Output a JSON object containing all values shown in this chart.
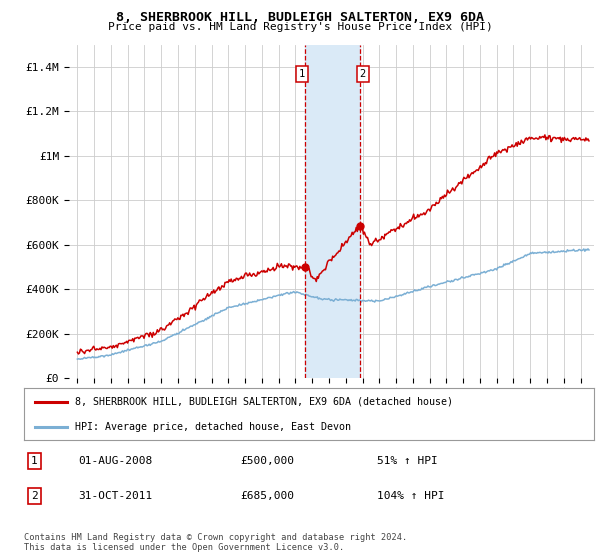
{
  "title": "8, SHERBROOK HILL, BUDLEIGH SALTERTON, EX9 6DA",
  "subtitle": "Price paid vs. HM Land Registry's House Price Index (HPI)",
  "ylabel_ticks": [
    "£0",
    "£200K",
    "£400K",
    "£600K",
    "£800K",
    "£1M",
    "£1.2M",
    "£1.4M"
  ],
  "ytick_values": [
    0,
    200000,
    400000,
    600000,
    800000,
    1000000,
    1200000,
    1400000
  ],
  "ylim": [
    0,
    1500000
  ],
  "xlim_start": 1994.5,
  "xlim_end": 2025.8,
  "sale1_year": 2008.583,
  "sale1_price": 500000,
  "sale1_label": "1",
  "sale1_date": "01-AUG-2008",
  "sale1_hpi": "51% ↑ HPI",
  "sale2_year": 2011.833,
  "sale2_price": 685000,
  "sale2_label": "2",
  "sale2_date": "31-OCT-2011",
  "sale2_hpi": "104% ↑ HPI",
  "red_line_color": "#cc0000",
  "blue_line_color": "#7bafd4",
  "shade_color": "#daeaf7",
  "grid_color": "#cccccc",
  "background_color": "#ffffff",
  "legend_label_red": "8, SHERBROOK HILL, BUDLEIGH SALTERTON, EX9 6DA (detached house)",
  "legend_label_blue": "HPI: Average price, detached house, East Devon",
  "footnote1": "Contains HM Land Registry data © Crown copyright and database right 2024.",
  "footnote2": "This data is licensed under the Open Government Licence v3.0."
}
